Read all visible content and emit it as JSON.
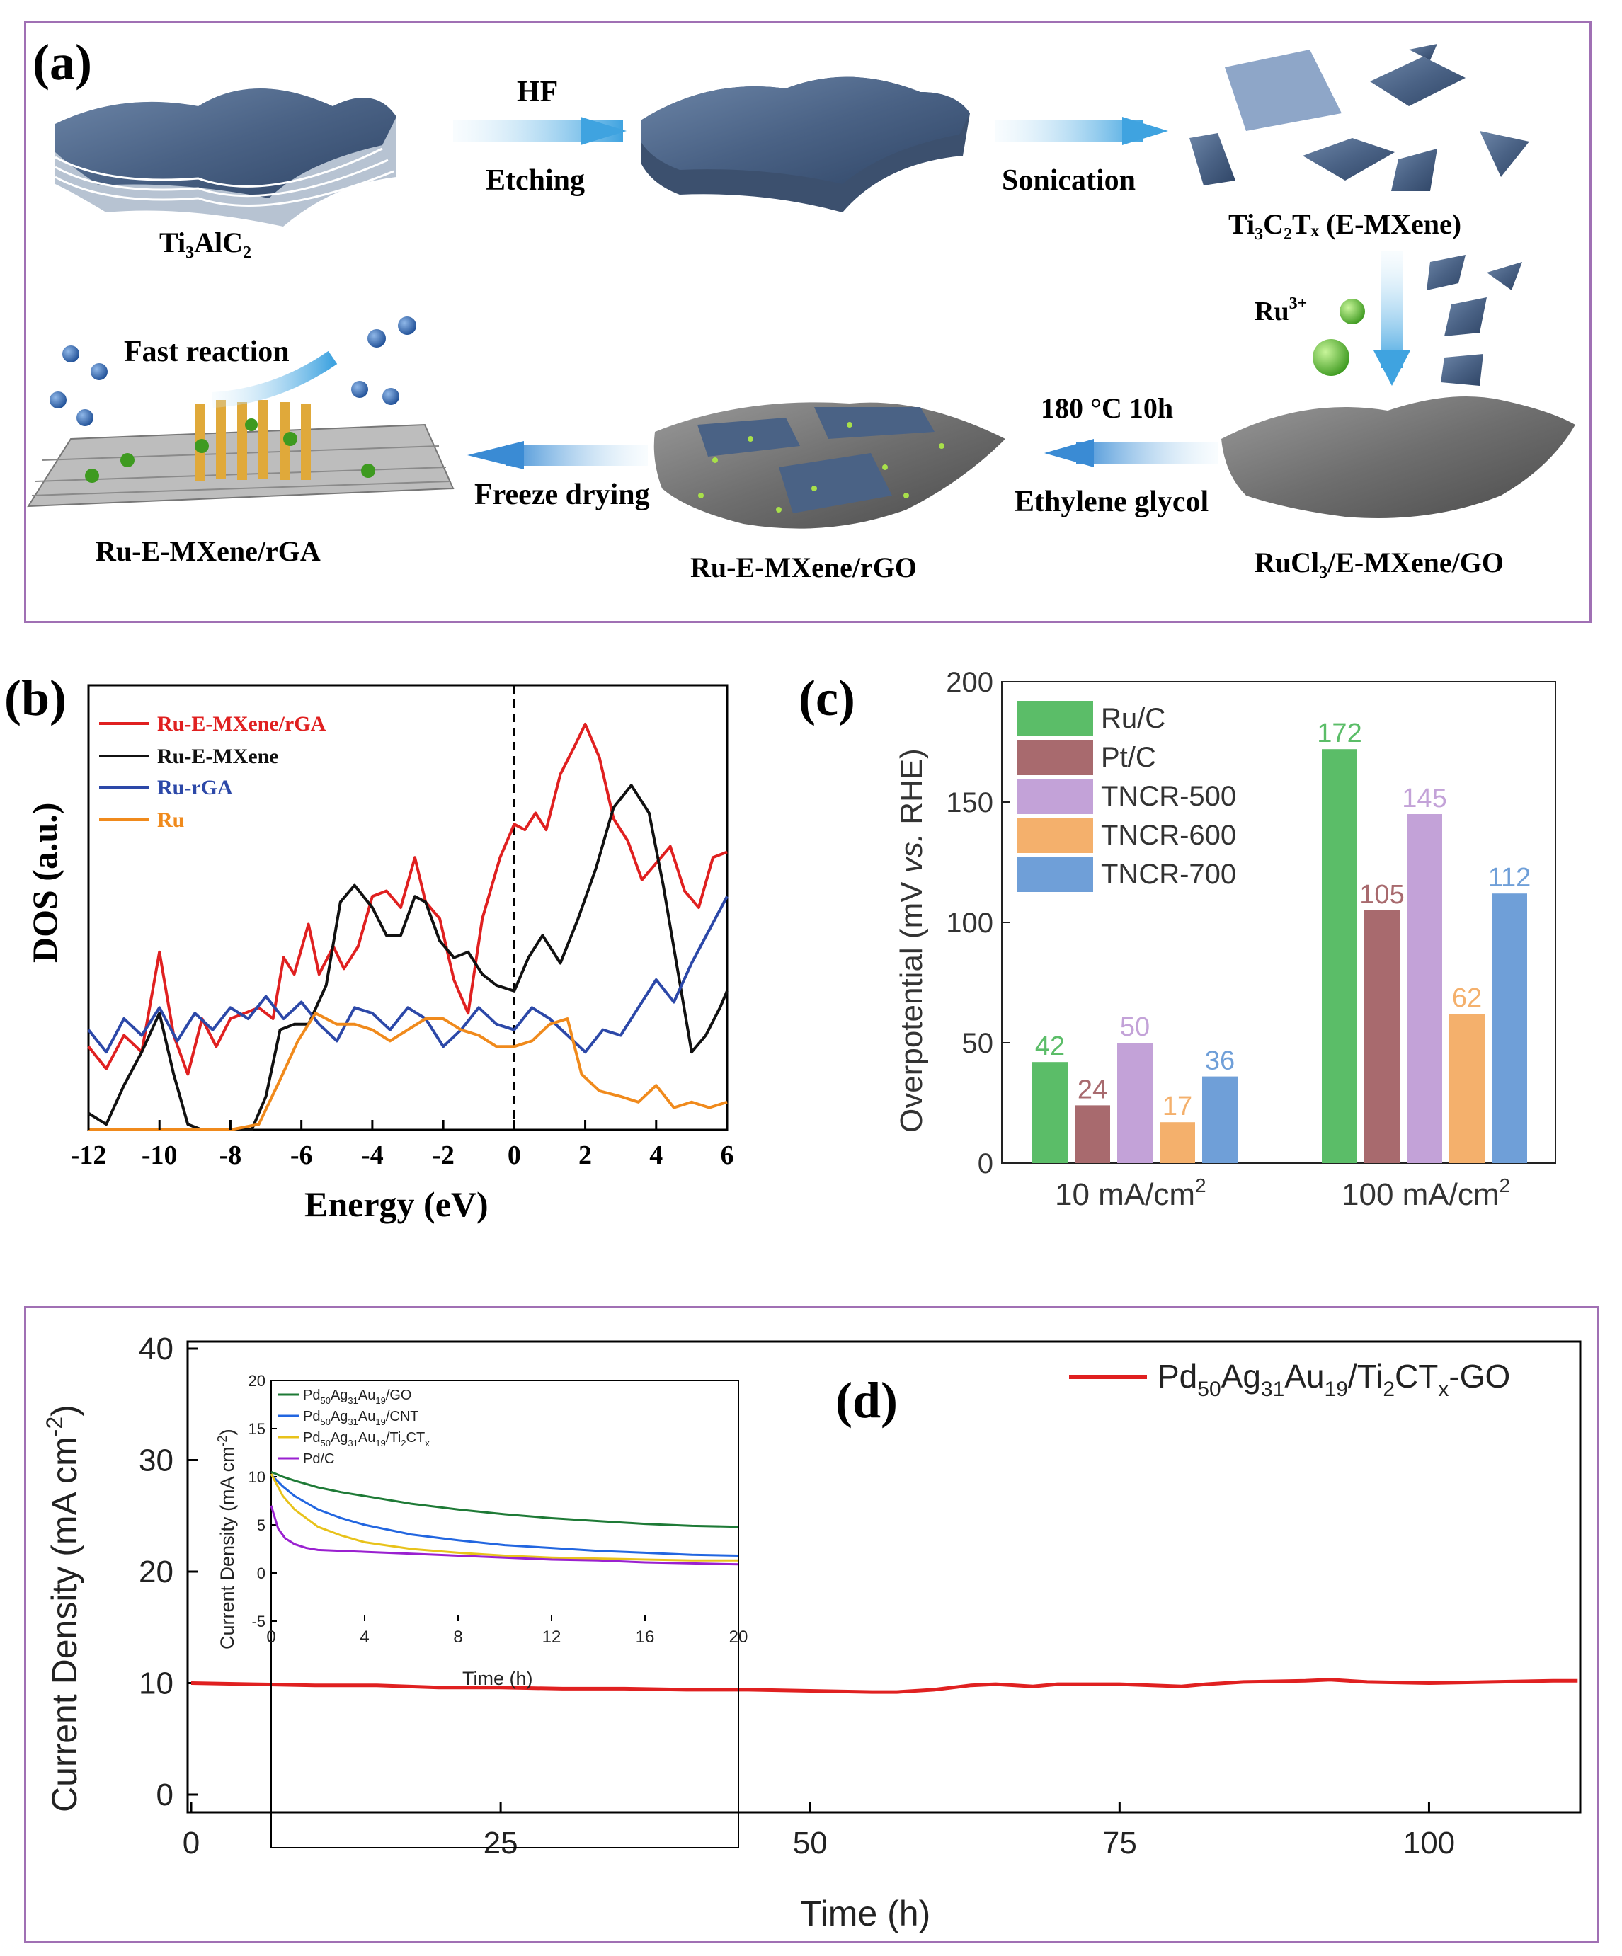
{
  "panel_a": {
    "label": "(a)",
    "arrows": {
      "hf": "HF",
      "etching": "Etching",
      "sonication": "Sonication",
      "ru": "Ru",
      "ru_sup": "3+",
      "fast": "Fast reaction",
      "freeze": "Freeze drying",
      "temp": "180 °C 10h",
      "glycol": "Ethylene glycol"
    },
    "materials": {
      "ti3alc2": "Ti₃AlC₂",
      "emxene": "Ti₃C₂Tₓ (E-MXene)",
      "rga": "Ru-E-MXene/rGA",
      "rgo": "Ru-E-MXene/rGO",
      "rucl3": "RuCl₃/E-MXene/GO"
    }
  },
  "colors": {
    "frame": "#a070b4",
    "red": "#e02020",
    "black": "#111111",
    "blue": "#2c48a8",
    "orange": "#f08a1c",
    "green": "#5bbd68",
    "brown": "#a86a6e",
    "purple": "#c3a2d8",
    "peach": "#f4b06c",
    "lightblue": "#6f9fd8"
  },
  "chart_data": [
    {
      "panel": "(b)",
      "type": "line",
      "xlabel": "Energy (eV)",
      "ylabel": "DOS (a.u.)",
      "xlim": [
        -12,
        6
      ],
      "xticks": [
        "-12",
        "-10",
        "-8",
        "-6",
        "-4",
        "-2",
        "0",
        "2",
        "4",
        "6"
      ],
      "series": [
        {
          "name": "Ru-E-MXene/rGA",
          "color": "#e02020",
          "x": [
            -12,
            -11.5,
            -11,
            -10.5,
            -10,
            -9.6,
            -9.2,
            -8.8,
            -8.4,
            -8,
            -7.6,
            -7.2,
            -6.8,
            -6.5,
            -6.2,
            -5.8,
            -5.5,
            -5.1,
            -4.8,
            -4.4,
            -4,
            -3.6,
            -3.2,
            -2.8,
            -2.5,
            -2.1,
            -1.7,
            -1.3,
            -0.9,
            -0.4,
            0,
            0.3,
            0.6,
            0.9,
            1.3,
            1.7,
            2,
            2.4,
            2.8,
            3.2,
            3.6,
            4,
            4.4,
            4.8,
            5.2,
            5.6,
            6
          ],
          "y": [
            15,
            11,
            17,
            14,
            32,
            17,
            10,
            20,
            15,
            20,
            21,
            22,
            20,
            31,
            28,
            37,
            28,
            33,
            29,
            33,
            42,
            43,
            40,
            49,
            41,
            38,
            27,
            21,
            38,
            49,
            55,
            54,
            57,
            54,
            64,
            69,
            73,
            67,
            56,
            52,
            45,
            48,
            51,
            43,
            40,
            49,
            50
          ]
        },
        {
          "name": "Ru-E-MXene",
          "color": "#111111",
          "x": [
            -12,
            -11.5,
            -11,
            -10.5,
            -10,
            -9.6,
            -9.2,
            -8.8,
            -8,
            -7.4,
            -7,
            -6.6,
            -6.2,
            -5.8,
            -5.3,
            -4.9,
            -4.5,
            -4,
            -3.6,
            -3.2,
            -2.8,
            -2.5,
            -2.1,
            -1.7,
            -1.3,
            -0.9,
            -0.5,
            0,
            0.4,
            0.8,
            1.3,
            1.8,
            2.3,
            2.8,
            3.3,
            3.8,
            4.2,
            4.6,
            5,
            5.4,
            5.8,
            6
          ],
          "y": [
            3,
            1,
            8,
            14,
            21,
            10,
            1,
            0,
            0,
            0,
            6,
            18,
            19,
            19,
            26,
            41,
            44,
            40,
            35,
            35,
            42,
            41,
            34,
            31,
            32,
            28,
            26,
            25,
            31,
            35,
            30,
            38,
            47,
            58,
            62,
            57,
            44,
            29,
            14,
            17,
            22,
            25
          ]
        },
        {
          "name": "Ru-rGA",
          "color": "#2c48a8",
          "x": [
            -12,
            -11.5,
            -11,
            -10.5,
            -10,
            -9.5,
            -9,
            -8.5,
            -8,
            -7.5,
            -7,
            -6.5,
            -6,
            -5.5,
            -5,
            -4.5,
            -4,
            -3.5,
            -3,
            -2.5,
            -2,
            -1.5,
            -1,
            -0.5,
            0,
            0.5,
            1,
            1.5,
            2,
            2.5,
            3,
            3.5,
            4,
            4.5,
            5,
            5.5,
            6
          ],
          "y": [
            18,
            14,
            20,
            17,
            22,
            16,
            21,
            18,
            22,
            20,
            24,
            20,
            23,
            19,
            16,
            22,
            21,
            18,
            22,
            20,
            15,
            18,
            22,
            19,
            18,
            22,
            20,
            17,
            14,
            18,
            17,
            22,
            27,
            23,
            30,
            36,
            42
          ]
        },
        {
          "name": "Ru",
          "color": "#f08a1c",
          "x": [
            -12,
            -8,
            -7.2,
            -6.6,
            -6.1,
            -5.6,
            -5,
            -4.5,
            -4,
            -3.5,
            -3,
            -2.5,
            -2,
            -1.5,
            -1,
            -0.5,
            0,
            0.5,
            1,
            1.5,
            1.9,
            2.4,
            3,
            3.5,
            4,
            4.5,
            5,
            5.5,
            6
          ],
          "y": [
            0,
            0,
            1,
            9,
            16,
            21,
            19,
            19,
            18,
            16,
            18,
            20,
            20,
            18,
            17,
            15,
            15,
            16,
            19,
            20,
            10,
            7,
            6,
            5,
            8,
            4,
            5,
            4,
            5
          ]
        }
      ]
    },
    {
      "panel": "(c)",
      "type": "bar",
      "ylabel_main": "Overpotential (mV ",
      "ylabel_italic": "vs.",
      "ylabel_end": " RHE)",
      "ylim": [
        0,
        200
      ],
      "yticks": [
        "0",
        "50",
        "100",
        "150",
        "200"
      ],
      "categories": [
        "10 mA/cm",
        "100 mA/cm"
      ],
      "category_sup": "2",
      "series": [
        {
          "name": "Ru/C",
          "color": "#5bbd68",
          "values": [
            42,
            172
          ]
        },
        {
          "name": "Pt/C",
          "color": "#a86a6e",
          "values": [
            24,
            105
          ]
        },
        {
          "name": "TNCR-500",
          "color": "#c3a2d8",
          "values": [
            50,
            145
          ]
        },
        {
          "name": "TNCR-600",
          "color": "#f4b06c",
          "values": [
            17,
            62
          ]
        },
        {
          "name": "TNCR-700",
          "color": "#6f9fd8",
          "values": [
            36,
            112
          ]
        }
      ]
    },
    {
      "panel": "(d)",
      "type": "line",
      "xlabel": "Time (h)",
      "ylabel": "Current Density (mA cm",
      "xlim": [
        0,
        112
      ],
      "ylim": [
        0,
        40
      ],
      "xticks": [
        "0",
        "25",
        "50",
        "75",
        "100"
      ],
      "yticks": [
        "0",
        "10",
        "20",
        "30",
        "40"
      ],
      "legend": "Pd50Ag31Au19/Ti2CTx-GO",
      "series": [
        {
          "name": "Pd50Ag31Au19/Ti2CTx-GO",
          "color": "#e02020",
          "x": [
            0,
            5,
            10,
            15,
            20,
            25,
            30,
            35,
            40,
            45,
            50,
            55,
            57,
            60,
            63,
            65,
            68,
            70,
            75,
            80,
            82,
            85,
            90,
            92,
            95,
            100,
            105,
            110,
            112
          ],
          "y": [
            10,
            9.9,
            9.8,
            9.8,
            9.6,
            9.6,
            9.5,
            9.5,
            9.4,
            9.4,
            9.3,
            9.2,
            9.2,
            9.4,
            9.8,
            9.9,
            9.7,
            9.9,
            9.9,
            9.7,
            9.9,
            10.1,
            10.2,
            10.3,
            10.1,
            10.0,
            10.1,
            10.2,
            10.2
          ]
        }
      ]
    },
    {
      "panel": "(d) inset",
      "type": "line",
      "xlabel": "Time (h)",
      "ylabel": "Current Density (mA cm",
      "xlim": [
        0,
        20
      ],
      "ylim": [
        -5,
        20
      ],
      "xticks": [
        "0",
        "4",
        "8",
        "12",
        "16",
        "20"
      ],
      "yticks": [
        "-5",
        "0",
        "5",
        "10",
        "15",
        "20"
      ],
      "series": [
        {
          "name": "Pd50Ag31Au19/GO",
          "color": "#1e7a36",
          "x": [
            0,
            0.5,
            1,
            2,
            3,
            4,
            6,
            8,
            10,
            12,
            14,
            16,
            18,
            20
          ],
          "y": [
            10.5,
            10,
            9.6,
            8.9,
            8.4,
            8,
            7.2,
            6.6,
            6.1,
            5.7,
            5.4,
            5.1,
            4.9,
            4.8
          ]
        },
        {
          "name": "Pd50Ag31Au19/CNT",
          "color": "#2266e0",
          "x": [
            0,
            0.5,
            1,
            2,
            3,
            4,
            6,
            8,
            10,
            12,
            14,
            16,
            18,
            20
          ],
          "y": [
            10.2,
            9,
            8,
            6.6,
            5.7,
            5,
            4,
            3.4,
            2.9,
            2.6,
            2.3,
            2.1,
            1.9,
            1.8
          ]
        },
        {
          "name": "Pd50Ag31Au19/Ti2CTx",
          "color": "#e8c21a",
          "x": [
            0,
            0.5,
            1,
            2,
            3,
            4,
            6,
            8,
            10,
            12,
            14,
            16,
            18,
            20
          ],
          "y": [
            10.3,
            8,
            6.6,
            4.8,
            3.9,
            3.2,
            2.5,
            2.1,
            1.8,
            1.6,
            1.5,
            1.4,
            1.3,
            1.3
          ]
        },
        {
          "name": "Pd/C",
          "color": "#9a20d0",
          "x": [
            0,
            0.3,
            0.6,
            1,
            1.5,
            2,
            3,
            4,
            6,
            8,
            10,
            12,
            14,
            16,
            18,
            20
          ],
          "y": [
            7,
            4.6,
            3.6,
            3,
            2.6,
            2.4,
            2.3,
            2.2,
            2,
            1.8,
            1.6,
            1.4,
            1.3,
            1.1,
            1,
            0.9
          ]
        }
      ]
    }
  ],
  "inset_legend": [
    {
      "pre": "Pd",
      "s1": "50",
      "m1": "Ag",
      "s2": "31",
      "m2": "Au",
      "s3": "19",
      "post": "/GO"
    },
    {
      "pre": "Pd",
      "s1": "50",
      "m1": "Ag",
      "s2": "31",
      "m2": "Au",
      "s3": "19",
      "post": "/CNT"
    },
    {
      "pre": "Pd",
      "s1": "50",
      "m1": "Ag",
      "s2": "31",
      "m2": "Au",
      "s3": "19",
      "post": "/Ti",
      "s4": "2",
      "post2": "CT",
      "s5": "x"
    },
    {
      "pre": "Pd/C"
    }
  ],
  "panel_labels": {
    "b": "(b)",
    "c": "(c)",
    "d": "(d)"
  },
  "d_legend_parts": {
    "pd": "Pd",
    "s50": "50",
    "ag": "Ag",
    "s31": "31",
    "au": "Au",
    "s19": "19",
    "ti": "/Ti",
    "s2": "2",
    "ct": "CT",
    "sx": "x",
    "go": "-GO"
  },
  "d_ylabel_sup": "-2"
}
